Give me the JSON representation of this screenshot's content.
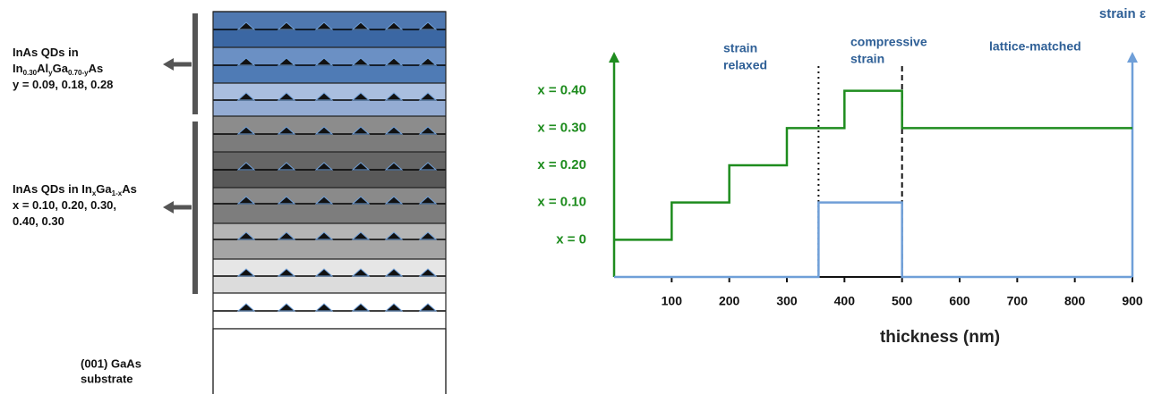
{
  "diagram": {
    "groups": [
      {
        "lines": [
          {
            "parts": [
              {
                "t": "InAs QDs in"
              }
            ]
          },
          {
            "parts": [
              {
                "t": "In"
              },
              {
                "t": "0.30",
                "sub": true
              },
              {
                "t": "Al"
              },
              {
                "t": "y",
                "sub": true
              },
              {
                "t": "Ga"
              },
              {
                "t": "0.70-y",
                "sub": true
              },
              {
                "t": "As"
              }
            ]
          },
          {
            "parts": [
              {
                "t": "y = 0.09, 0.18, 0.28"
              }
            ]
          }
        ]
      },
      {
        "lines": [
          {
            "parts": [
              {
                "t": "InAs QDs in In"
              },
              {
                "t": "x",
                "sub": true
              },
              {
                "t": "Ga"
              },
              {
                "t": "1-x",
                "sub": true
              },
              {
                "t": "As"
              }
            ]
          },
          {
            "parts": [
              {
                "t": "x = 0.10, 0.20, 0.30,"
              }
            ]
          },
          {
            "parts": [
              {
                "t": "0.40, 0.30"
              }
            ]
          }
        ]
      }
    ],
    "substrate": [
      "(001) GaAs",
      "substrate"
    ]
  },
  "chart_data": {
    "type": "line",
    "x_label": "thickness (nm)",
    "y2_label": "strain ε",
    "xlim": [
      0,
      900
    ],
    "xticks": [
      100,
      200,
      300,
      400,
      500,
      600,
      700,
      800,
      900
    ],
    "ylim": [
      -0.1,
      0.5
    ],
    "yticks": [
      {
        "value": 0,
        "label": "x = 0"
      },
      {
        "value": 0.1,
        "label": "x = 0.10"
      },
      {
        "value": 0.2,
        "label": "x = 0.20"
      },
      {
        "value": 0.3,
        "label": "x = 0.30"
      },
      {
        "value": 0.4,
        "label": "x = 0.40"
      }
    ],
    "y2lim": [
      0,
      0.6
    ],
    "series": [
      {
        "color": "#1e8c1e",
        "x": [
          0,
          100,
          100,
          200,
          200,
          300,
          300,
          400,
          400,
          500,
          500,
          900
        ],
        "values": [
          0,
          0,
          0.1,
          0.1,
          0.2,
          0.2,
          0.3,
          0.3,
          0.4,
          0.4,
          0.3,
          0.3
        ]
      },
      {
        "color": "#6f9fd8",
        "axis": "y2",
        "x": [
          0,
          355,
          355,
          500,
          500,
          900
        ],
        "values": [
          0,
          0,
          0.2,
          0.2,
          0,
          0
        ]
      }
    ],
    "vlines": [
      {
        "x": 355,
        "style": "dotted"
      },
      {
        "x": 500,
        "style": "dashed"
      }
    ],
    "annotations": [
      {
        "lines": [
          "strain",
          "relaxed"
        ]
      },
      {
        "lines": [
          "compressive",
          "strain"
        ]
      },
      {
        "lines": [
          "lattice-matched"
        ]
      }
    ]
  }
}
